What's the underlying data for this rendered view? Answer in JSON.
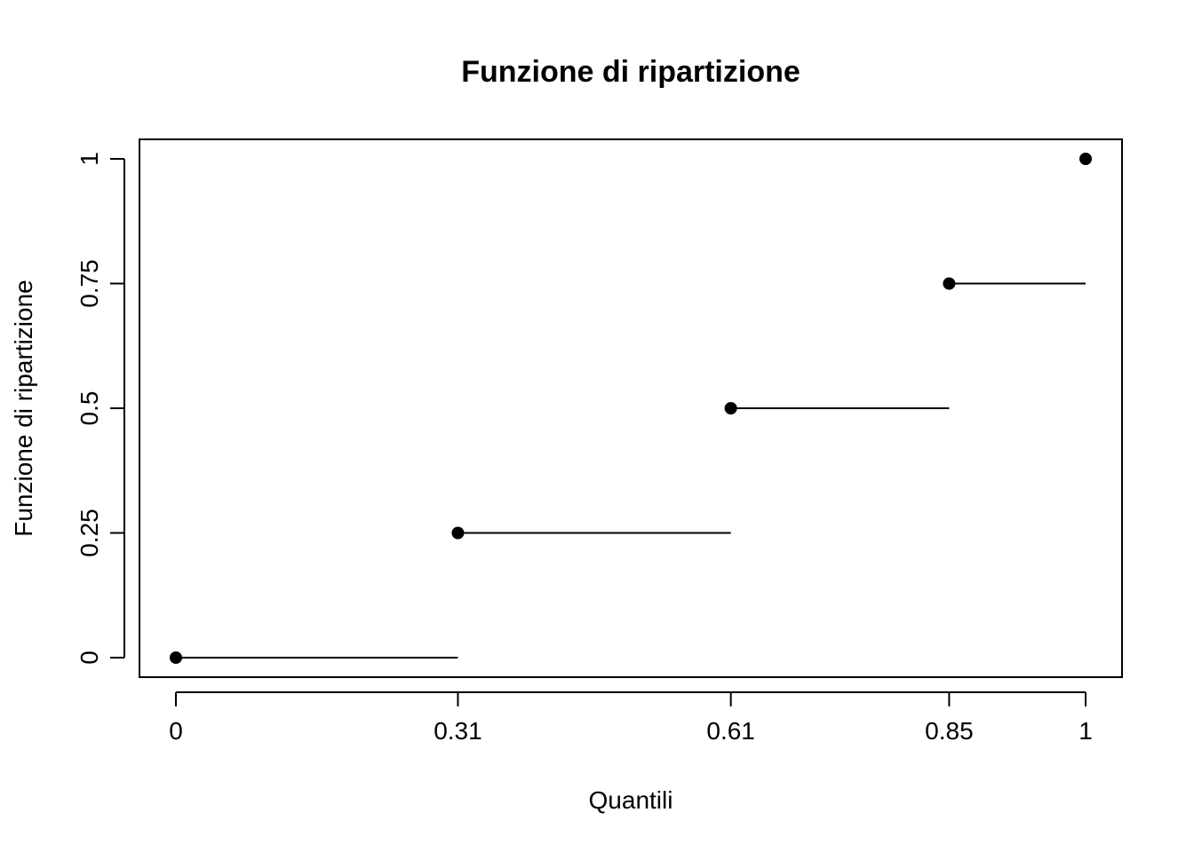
{
  "chart_data": {
    "type": "step",
    "title": "Funzione di ripartizione",
    "xlabel": "Quantili",
    "ylabel": "Funzione di ripartizione",
    "x_ticks": [
      0,
      0.31,
      0.61,
      0.85,
      1
    ],
    "x_tick_labels": [
      "0",
      "0.31",
      "0.61",
      "0.85",
      "1"
    ],
    "y_ticks": [
      0,
      0.25,
      0.5,
      0.75,
      1
    ],
    "y_tick_labels": [
      "0",
      "0.25",
      "0.5",
      "0.75",
      "1"
    ],
    "xlim": [
      0,
      1
    ],
    "ylim": [
      0,
      1
    ],
    "grid": false,
    "points": [
      {
        "x": 0,
        "y": 0
      },
      {
        "x": 0.31,
        "y": 0.25
      },
      {
        "x": 0.61,
        "y": 0.5
      },
      {
        "x": 0.85,
        "y": 0.75
      },
      {
        "x": 1,
        "y": 1
      }
    ],
    "segments": [
      {
        "x0": 0,
        "x1": 0.31,
        "y": 0
      },
      {
        "x0": 0.31,
        "x1": 0.61,
        "y": 0.25
      },
      {
        "x0": 0.61,
        "x1": 0.85,
        "y": 0.5
      },
      {
        "x0": 0.85,
        "x1": 1,
        "y": 0.75
      }
    ],
    "color": "#000000"
  }
}
